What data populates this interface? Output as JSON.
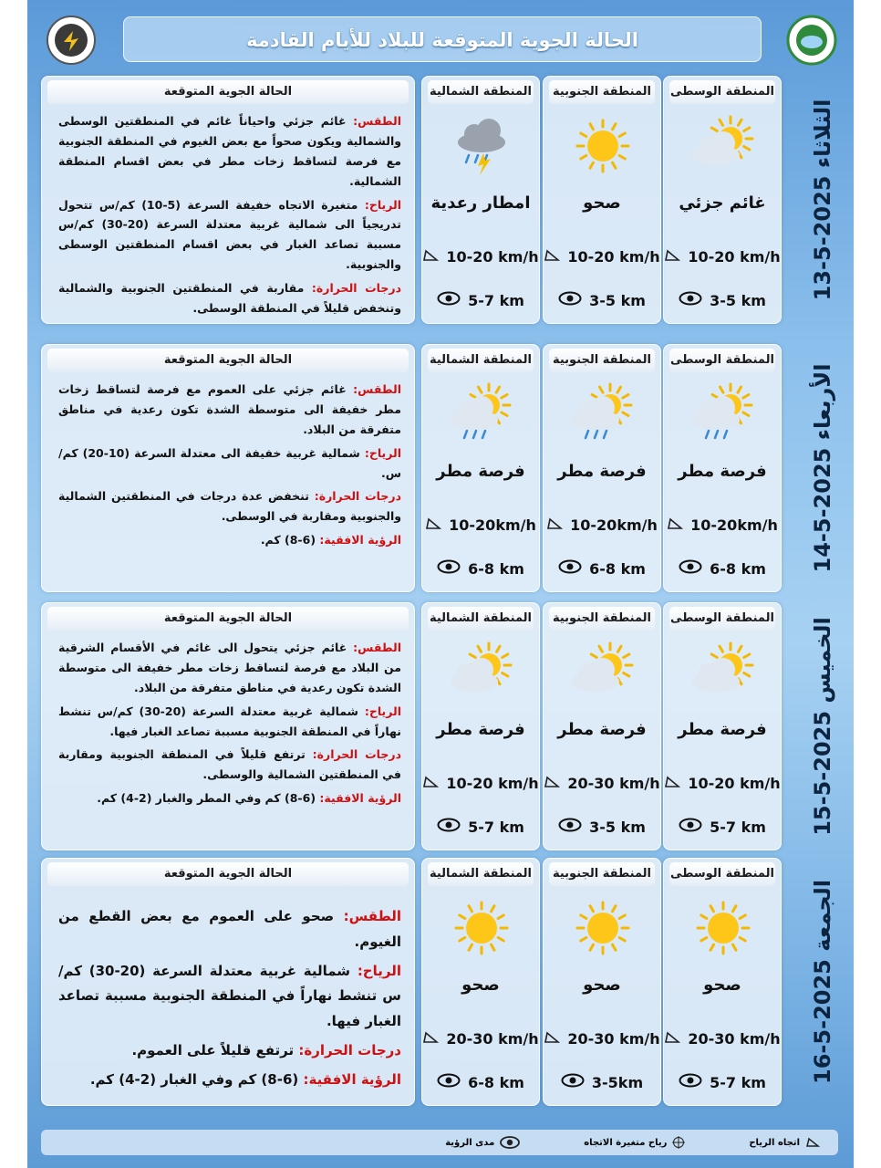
{
  "header": {
    "title": "الحالة الجوية المتوقعة للبلاد للأيام القادمة"
  },
  "days": [
    {
      "date": "الثلاثاء 2025-5-13",
      "regions": [
        {
          "name": "المنطقة الوسطى",
          "condition": "غائم جزئي",
          "wind": "10-20 km/h",
          "visibility": "3-5 km"
        },
        {
          "name": "المنطقة الجنوبية",
          "condition": "صحو",
          "wind": "10-20 km/h",
          "visibility": "3-5 km"
        },
        {
          "name": "المنطقة الشمالية",
          "condition": "امطار رعدية",
          "wind": "10-20 km/h",
          "visibility": "5-7 km"
        }
      ],
      "forecast": {
        "heading": "الحالة الجوية المتوقعة",
        "items": [
          {
            "label": "الطقس:",
            "text": "غائم جزئي واحياناً غائم في المنطقتين الوسطى والشمالية ويكون صحواً مع بعض الغيوم في المنطقة الجنوبية مع فرصة لتساقط زخات مطر في بعض اقسام المنطقة الشمالية."
          },
          {
            "label": "الرياح:",
            "text": "متغيرة الاتجاه خفيفة السرعة (5-10) كم/س تتحول تدريجياً الى شمالية غربية معتدلة السرعة (20-30) كم/س مسببة تصاعد الغبار في بعض اقسام المنطقتين الوسطى والجنوبية."
          },
          {
            "label": "درجات الحرارة:",
            "text": "مقاربة في المنطقتين الجنوبية والشمالية وتنخفض قليلاً في المنطقة الوسطى."
          }
        ]
      }
    },
    {
      "date": "الأربعاء 2025-5-14",
      "regions": [
        {
          "name": "المنطقة الوسطى",
          "condition": "فرصة مطر",
          "wind": "10-20km/h",
          "visibility": "6-8 km"
        },
        {
          "name": "المنطقة الجنوبية",
          "condition": "فرصة مطر",
          "wind": "10-20km/h",
          "visibility": "6-8 km"
        },
        {
          "name": "المنطقة الشمالية",
          "condition": "فرصة مطر",
          "wind": "10-20km/h",
          "visibility": "6-8 km"
        }
      ],
      "forecast": {
        "heading": "الحالة الجوية المتوقعة",
        "items": [
          {
            "label": "الطقس:",
            "text": "غائم جزئي على العموم مع فرصة لتساقط زخات مطر خفيفة الى متوسطة الشدة تكون رعدية في مناطق متفرقة من البلاد."
          },
          {
            "label": "الرياح:",
            "text": "شمالية غربية خفيفة الى معتدلة السرعة (10-20) كم/س."
          },
          {
            "label": "درجات الحرارة:",
            "text": "تنخفض عدة درجات في المنطقتين الشمالية والجنوبية ومقاربة في الوسطى."
          },
          {
            "label": "الرؤية الافقية:",
            "text": "(6-8) كم."
          }
        ]
      }
    },
    {
      "date": "الخميس 2025-5-15",
      "regions": [
        {
          "name": "المنطقة الوسطى",
          "condition": "فرصة مطر",
          "wind": "10-20 km/h",
          "visibility": "5-7 km"
        },
        {
          "name": "المنطقة الجنوبية",
          "condition": "فرصة مطر",
          "wind": "20-30 km/h",
          "visibility": "3-5 km"
        },
        {
          "name": "المنطقة الشمالية",
          "condition": "فرصة مطر",
          "wind": "10-20 km/h",
          "visibility": "5-7 km"
        }
      ],
      "forecast": {
        "heading": "الحالة الجوية المتوقعة",
        "items": [
          {
            "label": "الطقس:",
            "text": "غائم جزئي يتحول الى غائم في الأقسام الشرقية من البلاد مع فرصة لتساقط زخات مطر خفيفة الى متوسطة الشدة تكون رعدية في مناطق متفرقة من البلاد."
          },
          {
            "label": "الرياح:",
            "text": "شمالية غربية معتدلة السرعة (20-30) كم/س تنشط نهاراً في المنطقة الجنوبية مسببة تصاعد الغبار فيها."
          },
          {
            "label": "درجات الحرارة:",
            "text": "ترتفع قليلاً في المنطقة الجنوبية ومقاربة في المنطقتين الشمالية والوسطى."
          },
          {
            "label": "الرؤية الافقية:",
            "text": "(6-8) كم وفي المطر والغبار (2-4) كم."
          }
        ]
      }
    },
    {
      "date": "الجمعة 2025-5-16",
      "regions": [
        {
          "name": "المنطقة الوسطى",
          "condition": "صحو",
          "wind": "20-30 km/h",
          "visibility": "5-7 km"
        },
        {
          "name": "المنطقة الجنوبية",
          "condition": "صحو",
          "wind": "20-30 km/h",
          "visibility": "3-5km"
        },
        {
          "name": "المنطقة الشمالية",
          "condition": "صحو",
          "wind": "20-30 km/h",
          "visibility": "6-8 km"
        }
      ],
      "forecast": {
        "heading": "الحالة الجوية المتوقعة",
        "items": [
          {
            "label": "الطقس:",
            "text": "صحو على العموم مع بعض القطع من الغيوم."
          },
          {
            "label": "الرياح:",
            "text": "شمالية غربية معتدلة السرعة (20-30) كم/س تنشط نهاراً في المنطقة الجنوبية مسببة تصاعد الغبار فيها."
          },
          {
            "label": "درجات الحرارة:",
            "text": "ترتفع قليلاً على العموم."
          },
          {
            "label": "الرؤية الافقية:",
            "text": "(6-8) كم وفي الغبار (2-4) كم."
          }
        ]
      }
    }
  ],
  "legend": {
    "wind_direction": "اتجاه الرياح",
    "variable_wind": "رياح متغيرة الاتجاه",
    "visibility": "مدى الرؤية"
  }
}
